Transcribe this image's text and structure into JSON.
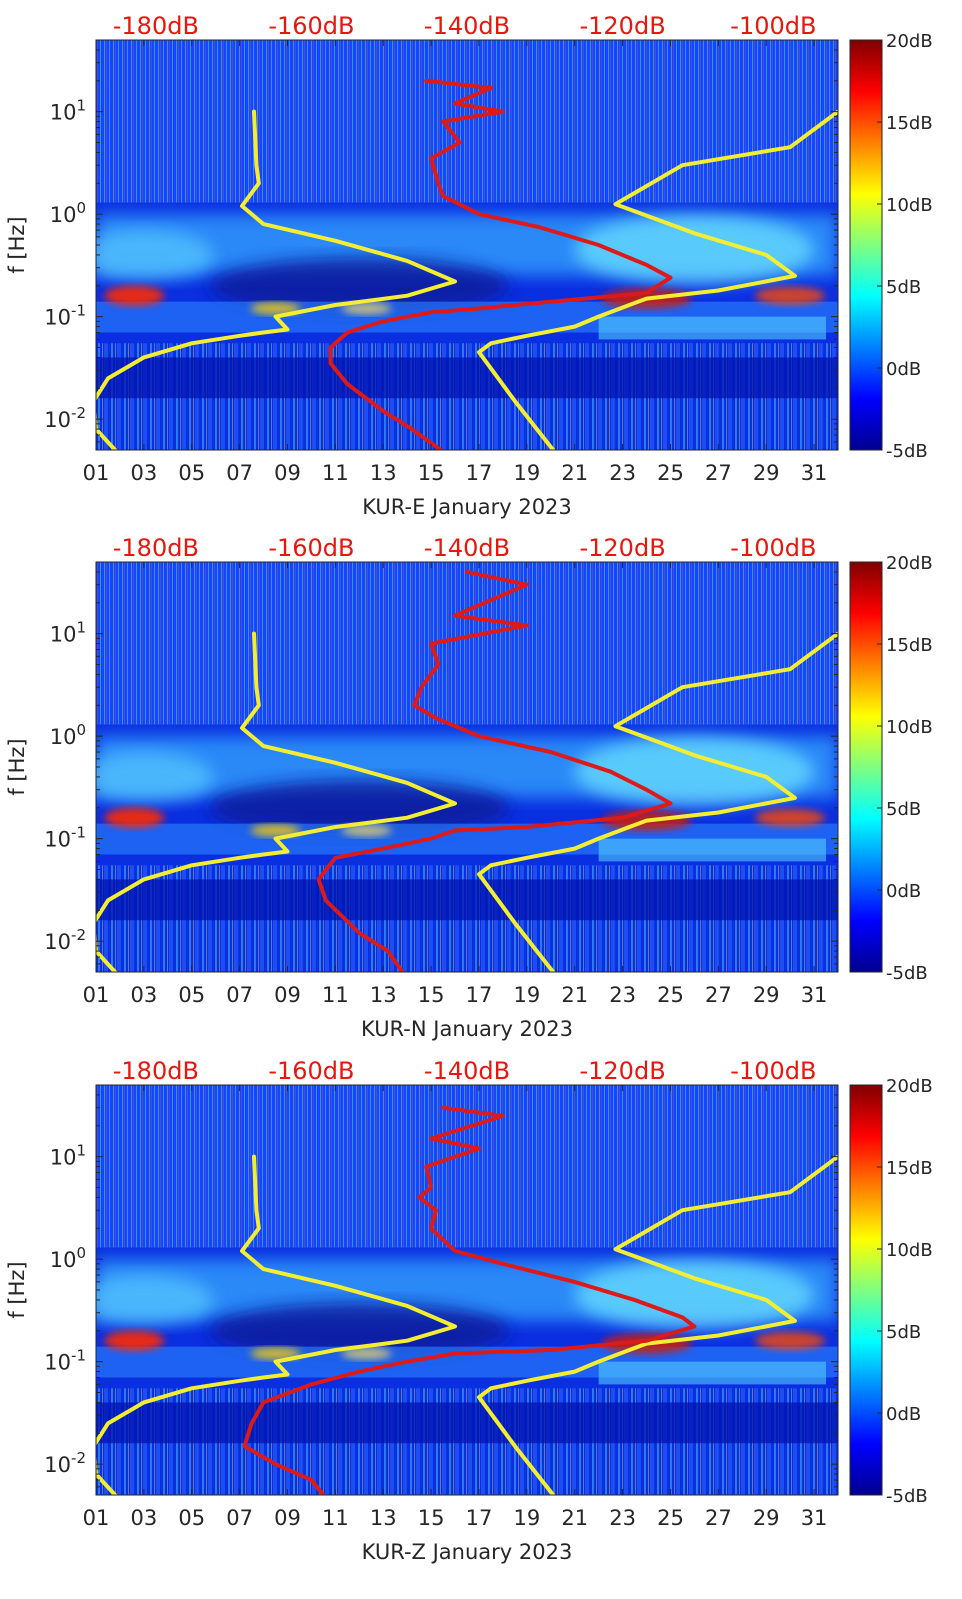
{
  "colors": {
    "top_axis_text": "#e8160c",
    "yellow_curve": "#f4ee32",
    "red_curve": "#dd1a1a",
    "axis_text": "#262626"
  },
  "chart_data": [
    {
      "type": "heatmap",
      "panel": "KUR-E",
      "xlabel": "KUR-E January 2023",
      "ylabel": "f [Hz]",
      "xscale": "linear",
      "yscale": "log",
      "xlim": [
        1,
        32
      ],
      "ylim": [
        0.005,
        50
      ],
      "x_tick_labels": [
        "01",
        "03",
        "05",
        "07",
        "09",
        "11",
        "13",
        "15",
        "17",
        "19",
        "21",
        "23",
        "25",
        "27",
        "29",
        "31"
      ],
      "y_tick_labels": [
        "10^-2",
        "10^-1",
        "10^0",
        "10^1"
      ],
      "top_axis_labels": [
        "-180dB",
        "-160dB",
        "-140dB",
        "-120dB",
        "-100dB"
      ],
      "colorbar": {
        "min": -5,
        "max": 20,
        "labels": [
          "20dB",
          "15dB",
          "10dB",
          "5dB",
          "0dB",
          "-5dB"
        ]
      },
      "series": [
        {
          "name": "yellow-curve-left",
          "color": "yellow",
          "points": [
            [
              7.6,
              10
            ],
            [
              7.7,
              3
            ],
            [
              7.8,
              2
            ],
            [
              7.1,
              1.2
            ],
            [
              8,
              0.8
            ],
            [
              11,
              0.55
            ],
            [
              14,
              0.35
            ],
            [
              16,
              0.22
            ],
            [
              14,
              0.16
            ],
            [
              11,
              0.13
            ],
            [
              8.5,
              0.1
            ],
            [
              9,
              0.075
            ],
            [
              8,
              0.07
            ],
            [
              7,
              0.065
            ],
            [
              5,
              0.055
            ],
            [
              3,
              0.04
            ],
            [
              1.5,
              0.025
            ],
            [
              0.9,
              0.015
            ],
            [
              1,
              0.008
            ],
            [
              1.8,
              0.005
            ]
          ]
        },
        {
          "name": "yellow-curve-right",
          "color": "yellow",
          "points": [
            [
              32,
              10
            ],
            [
              30,
              4.5
            ],
            [
              25.5,
              3
            ],
            [
              22.7,
              1.25
            ],
            [
              26,
              0.65
            ],
            [
              29,
              0.4
            ],
            [
              30.2,
              0.25
            ],
            [
              27,
              0.18
            ],
            [
              24,
              0.15
            ],
            [
              22,
              0.1
            ],
            [
              21,
              0.08
            ],
            [
              19,
              0.065
            ],
            [
              17.5,
              0.055
            ],
            [
              17,
              0.045
            ],
            [
              18.5,
              0.015
            ],
            [
              20.1,
              0.005
            ]
          ]
        },
        {
          "name": "red-curve",
          "color": "red",
          "points": [
            [
              14.8,
              20
            ],
            [
              17.5,
              17
            ],
            [
              16,
              12
            ],
            [
              18,
              10
            ],
            [
              15.5,
              8
            ],
            [
              16.2,
              5
            ],
            [
              15,
              3.5
            ],
            [
              15.3,
              2
            ],
            [
              15.5,
              1.5
            ],
            [
              17,
              1.0
            ],
            [
              19.5,
              0.75
            ],
            [
              22,
              0.5
            ],
            [
              24,
              0.32
            ],
            [
              25,
              0.24
            ],
            [
              24,
              0.17
            ],
            [
              20,
              0.14
            ],
            [
              17,
              0.12
            ],
            [
              15,
              0.11
            ],
            [
              13,
              0.09
            ],
            [
              11.5,
              0.07
            ],
            [
              10.8,
              0.05
            ],
            [
              10.8,
              0.035
            ],
            [
              11.5,
              0.022
            ],
            [
              13,
              0.012
            ],
            [
              14.2,
              0.008
            ],
            [
              15.4,
              0.005
            ]
          ]
        }
      ]
    },
    {
      "type": "heatmap",
      "panel": "KUR-N",
      "xlabel": "KUR-N January 2023",
      "ylabel": "f [Hz]",
      "xscale": "linear",
      "yscale": "log",
      "xlim": [
        1,
        32
      ],
      "ylim": [
        0.005,
        50
      ],
      "x_tick_labels": [
        "01",
        "03",
        "05",
        "07",
        "09",
        "11",
        "13",
        "15",
        "17",
        "19",
        "21",
        "23",
        "25",
        "27",
        "29",
        "31"
      ],
      "y_tick_labels": [
        "10^-2",
        "10^-1",
        "10^0",
        "10^1"
      ],
      "top_axis_labels": [
        "-180dB",
        "-160dB",
        "-140dB",
        "-120dB",
        "-100dB"
      ],
      "colorbar": {
        "min": -5,
        "max": 20,
        "labels": [
          "20dB",
          "15dB",
          "10dB",
          "5dB",
          "0dB",
          "-5dB"
        ]
      },
      "series": [
        {
          "name": "yellow-curve-left",
          "color": "yellow",
          "points": [
            [
              7.6,
              10
            ],
            [
              7.7,
              3
            ],
            [
              7.8,
              2
            ],
            [
              7.1,
              1.2
            ],
            [
              8,
              0.8
            ],
            [
              11,
              0.55
            ],
            [
              14,
              0.35
            ],
            [
              16,
              0.22
            ],
            [
              14,
              0.16
            ],
            [
              11,
              0.13
            ],
            [
              8.5,
              0.1
            ],
            [
              9,
              0.075
            ],
            [
              8,
              0.07
            ],
            [
              7,
              0.065
            ],
            [
              5,
              0.055
            ],
            [
              3,
              0.04
            ],
            [
              1.5,
              0.025
            ],
            [
              0.9,
              0.015
            ],
            [
              1,
              0.008
            ],
            [
              1.8,
              0.005
            ]
          ]
        },
        {
          "name": "yellow-curve-right",
          "color": "yellow",
          "points": [
            [
              32,
              10
            ],
            [
              30,
              4.5
            ],
            [
              25.5,
              3
            ],
            [
              22.7,
              1.25
            ],
            [
              26,
              0.65
            ],
            [
              29,
              0.4
            ],
            [
              30.2,
              0.25
            ],
            [
              27,
              0.18
            ],
            [
              24,
              0.15
            ],
            [
              22,
              0.1
            ],
            [
              21,
              0.08
            ],
            [
              19,
              0.065
            ],
            [
              17.5,
              0.055
            ],
            [
              17,
              0.045
            ],
            [
              18.5,
              0.015
            ],
            [
              20.1,
              0.005
            ]
          ]
        },
        {
          "name": "red-curve",
          "color": "red",
          "points": [
            [
              16.5,
              40
            ],
            [
              19,
              30
            ],
            [
              16,
              15
            ],
            [
              19,
              12
            ],
            [
              15,
              8
            ],
            [
              15.3,
              5
            ],
            [
              14.6,
              3
            ],
            [
              14.3,
              2
            ],
            [
              15.2,
              1.5
            ],
            [
              17,
              1.0
            ],
            [
              20,
              0.7
            ],
            [
              22.5,
              0.45
            ],
            [
              24,
              0.3
            ],
            [
              25,
              0.22
            ],
            [
              23,
              0.16
            ],
            [
              19,
              0.13
            ],
            [
              16,
              0.12
            ],
            [
              15,
              0.1
            ],
            [
              13,
              0.08
            ],
            [
              11,
              0.065
            ],
            [
              10.3,
              0.04
            ],
            [
              10.6,
              0.025
            ],
            [
              12,
              0.012
            ],
            [
              13.2,
              0.008
            ],
            [
              13.8,
              0.005
            ]
          ]
        }
      ]
    },
    {
      "type": "heatmap",
      "panel": "KUR-Z",
      "xlabel": "KUR-Z January 2023",
      "ylabel": "f [Hz]",
      "xscale": "linear",
      "yscale": "log",
      "xlim": [
        1,
        32
      ],
      "ylim": [
        0.005,
        50
      ],
      "x_tick_labels": [
        "01",
        "03",
        "05",
        "07",
        "09",
        "11",
        "13",
        "15",
        "17",
        "19",
        "21",
        "23",
        "25",
        "27",
        "29",
        "31"
      ],
      "y_tick_labels": [
        "10^-2",
        "10^-1",
        "10^0",
        "10^1"
      ],
      "top_axis_labels": [
        "-180dB",
        "-160dB",
        "-140dB",
        "-120dB",
        "-100dB"
      ],
      "colorbar": {
        "min": -5,
        "max": 20,
        "labels": [
          "20dB",
          "15dB",
          "10dB",
          "5dB",
          "0dB",
          "-5dB"
        ]
      },
      "series": [
        {
          "name": "yellow-curve-left",
          "color": "yellow",
          "points": [
            [
              7.6,
              10
            ],
            [
              7.7,
              3
            ],
            [
              7.8,
              2
            ],
            [
              7.1,
              1.2
            ],
            [
              8,
              0.8
            ],
            [
              11,
              0.55
            ],
            [
              14,
              0.35
            ],
            [
              16,
              0.22
            ],
            [
              14,
              0.16
            ],
            [
              11,
              0.13
            ],
            [
              8.5,
              0.1
            ],
            [
              9,
              0.075
            ],
            [
              8,
              0.07
            ],
            [
              7,
              0.065
            ],
            [
              5,
              0.055
            ],
            [
              3,
              0.04
            ],
            [
              1.5,
              0.025
            ],
            [
              0.9,
              0.015
            ],
            [
              1,
              0.008
            ],
            [
              1.8,
              0.005
            ]
          ]
        },
        {
          "name": "yellow-curve-right",
          "color": "yellow",
          "points": [
            [
              32,
              10
            ],
            [
              30,
              4.5
            ],
            [
              25.5,
              3
            ],
            [
              22.7,
              1.25
            ],
            [
              26,
              0.65
            ],
            [
              29,
              0.4
            ],
            [
              30.2,
              0.25
            ],
            [
              27,
              0.18
            ],
            [
              24,
              0.15
            ],
            [
              22,
              0.1
            ],
            [
              21,
              0.08
            ],
            [
              19,
              0.065
            ],
            [
              17.5,
              0.055
            ],
            [
              17,
              0.045
            ],
            [
              18.5,
              0.015
            ],
            [
              20.1,
              0.005
            ]
          ]
        },
        {
          "name": "red-curve",
          "color": "red",
          "points": [
            [
              15.5,
              30
            ],
            [
              18,
              25
            ],
            [
              15,
              15
            ],
            [
              17,
              12
            ],
            [
              14.8,
              8
            ],
            [
              15,
              5
            ],
            [
              14.5,
              4
            ],
            [
              15.2,
              3
            ],
            [
              15,
              2
            ],
            [
              16,
              1.2
            ],
            [
              18,
              0.9
            ],
            [
              21,
              0.6
            ],
            [
              23.5,
              0.4
            ],
            [
              25.5,
              0.27
            ],
            [
              26,
              0.22
            ],
            [
              24,
              0.16
            ],
            [
              20,
              0.13
            ],
            [
              16,
              0.12
            ],
            [
              14,
              0.1
            ],
            [
              12,
              0.08
            ],
            [
              10,
              0.06
            ],
            [
              8,
              0.04
            ],
            [
              7.5,
              0.025
            ],
            [
              7.2,
              0.015
            ],
            [
              8.5,
              0.01
            ],
            [
              10,
              0.007
            ],
            [
              10.5,
              0.005
            ]
          ]
        }
      ]
    }
  ]
}
